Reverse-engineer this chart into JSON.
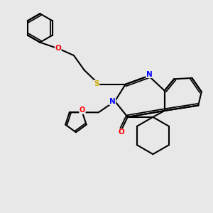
{
  "bg_color": "#e8e8e8",
  "atom_colors": {
    "N": "#0000ff",
    "O": "#ff0000",
    "S": "#ccaa00",
    "C": "#000000"
  },
  "bond_color": "#000000",
  "bond_width": 1.5
}
